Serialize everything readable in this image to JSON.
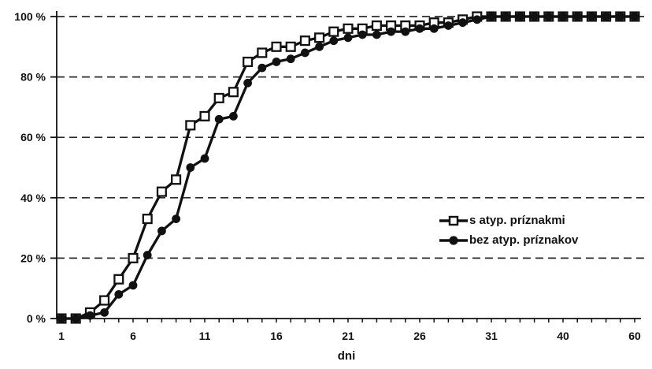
{
  "chart_data": {
    "type": "line",
    "title": "",
    "xlabel": "dni",
    "ylabel": "",
    "grid": {
      "visible": true,
      "style": "dashed",
      "direction": "horizontal"
    },
    "legend_position": "middle-right",
    "colors": {
      "line": "#111111",
      "grid": "#2b2b2b",
      "background": "#ffffff",
      "text": "#111111",
      "open_marker_fill": "#ffffff"
    },
    "y_axis": {
      "min": 0,
      "max": 100,
      "step": 20,
      "tick_labels": [
        "0 %",
        "20 %",
        "40 %",
        "60 %",
        "80 %",
        "100 %"
      ]
    },
    "x_axis": {
      "label": "dni",
      "n_categories": 41,
      "tick_positions": [
        0,
        5,
        10,
        15,
        20,
        25,
        30,
        35,
        40
      ],
      "tick_labels": [
        "1",
        "6",
        "11",
        "16",
        "21",
        "26",
        "31",
        "40",
        "60"
      ]
    },
    "series": [
      {
        "name": "s atyp. príznakmi",
        "marker": "open-square",
        "values": [
          0,
          0,
          2,
          6,
          13,
          20,
          33,
          42,
          46,
          64,
          67,
          73,
          75,
          85,
          88,
          90,
          90,
          92,
          93,
          95,
          96,
          96,
          97,
          97,
          97,
          97,
          98,
          98,
          99,
          100,
          100,
          100,
          100,
          100,
          100,
          100,
          100,
          100,
          100,
          100,
          100
        ]
      },
      {
        "name": "bez atyp. príznakov",
        "marker": "filled-circle",
        "values": [
          0,
          0,
          1,
          2,
          8,
          11,
          21,
          29,
          33,
          50,
          53,
          66,
          67,
          78,
          83,
          85,
          86,
          88,
          90,
          92,
          93,
          94,
          94,
          95,
          95,
          96,
          96,
          97,
          98,
          99,
          100,
          100,
          100,
          100,
          100,
          100,
          100,
          100,
          100,
          100,
          100
        ]
      }
    ]
  }
}
